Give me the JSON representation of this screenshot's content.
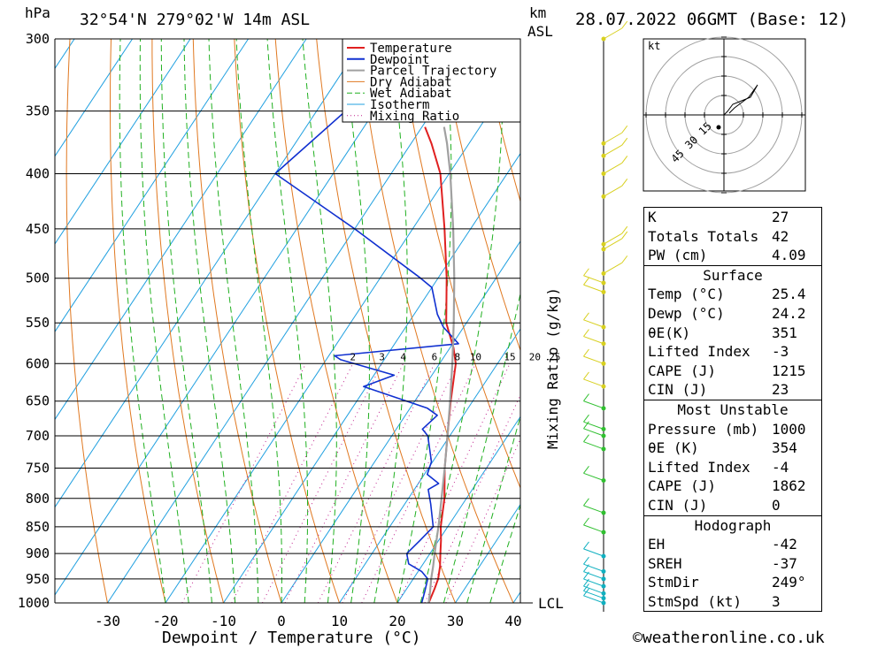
{
  "header": {
    "pressure_unit": "hPa",
    "location": "32°54'N  279°02'W  14m  ASL",
    "height_unit_line1": "km",
    "height_unit_line2": "ASL",
    "datetime": "28.07.2022  06GMT  (Base: 12)"
  },
  "footer": {
    "copyright": "©weatheronline.co.uk"
  },
  "chart_data": {
    "type": "line",
    "title": "32°54'N  279°02'W  14m  ASL",
    "xlabel": "Dewpoint / Temperature (°C)",
    "ylabel": "hPa",
    "right_axis_label": "Mixing Ratio (g/kg)",
    "xlim": [
      -40,
      40
    ],
    "ylim": [
      1000,
      300
    ],
    "x_ticks": [
      "-30",
      "-20",
      "-10",
      "0",
      "10",
      "20",
      "30",
      "40"
    ],
    "pressure_levels": [
      300,
      350,
      400,
      450,
      500,
      550,
      600,
      650,
      700,
      750,
      800,
      850,
      900,
      950,
      1000
    ],
    "pressure_labels": [
      "300",
      "350",
      "400",
      "450",
      "500",
      "550",
      "600",
      "650",
      "700",
      "750",
      "800",
      "850",
      "900",
      "950",
      "1000"
    ],
    "mixing_ratios": [
      1,
      2,
      3,
      4,
      6,
      8,
      10,
      15,
      20,
      25
    ],
    "mixing_ratio_labels": [
      "2",
      "3",
      "4",
      "6",
      "8",
      "10",
      "15",
      "20",
      "25"
    ],
    "lcl_label": "LCL",
    "legend": [
      "Temperature",
      "Dewpoint",
      "Parcel Trajectory",
      "Dry Adiabat",
      "Wet Adiabat",
      "Isotherm",
      "Mixing Ratio"
    ],
    "colors": {
      "temperature": "#e02020",
      "dewpoint": "#1030d0",
      "parcel": "#a0a0a0",
      "dry_adiabat": "#e07820",
      "wet_adiabat": "#20b020",
      "isotherm": "#20a0e0",
      "mixing_ratio": "#c0208c"
    },
    "series": [
      {
        "name": "Temperature",
        "points": [
          [
            1000,
            25.4
          ],
          [
            970,
            24.8
          ],
          [
            950,
            24.3
          ],
          [
            925,
            23.2
          ],
          [
            900,
            21.8
          ],
          [
            875,
            20.4
          ],
          [
            850,
            18.8
          ],
          [
            800,
            16.2
          ],
          [
            750,
            12.8
          ],
          [
            700,
            9.6
          ],
          [
            650,
            6.2
          ],
          [
            600,
            2.8
          ],
          [
            580,
            0.6
          ],
          [
            550,
            -3.5
          ],
          [
            500,
            -8.5
          ],
          [
            450,
            -14.5
          ],
          [
            400,
            -21.5
          ],
          [
            375,
            -26.5
          ],
          [
            362,
            -29.5
          ]
        ]
      },
      {
        "name": "Dewpoint",
        "points": [
          [
            1000,
            24.2
          ],
          [
            975,
            23.4
          ],
          [
            950,
            22.5
          ],
          [
            935,
            20.6
          ],
          [
            920,
            17.5
          ],
          [
            900,
            16.0
          ],
          [
            875,
            16.8
          ],
          [
            850,
            17.5
          ],
          [
            810,
            14.5
          ],
          [
            785,
            12.4
          ],
          [
            775,
            13.5
          ],
          [
            760,
            10.5
          ],
          [
            740,
            9.8
          ],
          [
            700,
            6.2
          ],
          [
            690,
            4.5
          ],
          [
            670,
            5.5
          ],
          [
            660,
            3.0
          ],
          [
            630,
            -10.5
          ],
          [
            615,
            -6.5
          ],
          [
            595,
            -17.5
          ],
          [
            590,
            -19.0
          ],
          [
            575,
            1.0
          ],
          [
            555,
            -3.5
          ],
          [
            540,
            -6.0
          ],
          [
            510,
            -10.0
          ],
          [
            500,
            -13.0
          ],
          [
            450,
            -30.0
          ],
          [
            400,
            -50.0
          ],
          [
            350,
            -45.0
          ],
          [
            320,
            -42.0
          ],
          [
            300,
            -48.0
          ]
        ]
      },
      {
        "name": "Parcel Trajectory",
        "points": [
          [
            1000,
            25.4
          ],
          [
            975,
            24.3
          ],
          [
            950,
            23.1
          ],
          [
            925,
            22.0
          ],
          [
            900,
            20.8
          ],
          [
            850,
            18.4
          ],
          [
            800,
            15.7
          ],
          [
            750,
            12.8
          ],
          [
            700,
            9.6
          ],
          [
            650,
            6.1
          ],
          [
            600,
            2.2
          ],
          [
            550,
            -2.2
          ],
          [
            500,
            -7.2
          ],
          [
            450,
            -13.0
          ],
          [
            400,
            -19.8
          ],
          [
            375,
            -23.8
          ],
          [
            362,
            -26.2
          ]
        ]
      }
    ]
  },
  "hodograph": {
    "unit": "kt",
    "ring_labels": [
      "15",
      "30",
      "45"
    ]
  },
  "indices": {
    "rows": [
      {
        "label": "K",
        "value": "27"
      },
      {
        "label": "Totals Totals",
        "value": "42"
      },
      {
        "label": "PW (cm)",
        "value": "4.09"
      }
    ]
  },
  "surface": {
    "title": "Surface",
    "rows": [
      {
        "label": "Temp (°C)",
        "value": "25.4"
      },
      {
        "label": "Dewp (°C)",
        "value": "24.2"
      },
      {
        "label": "θE(K)",
        "value": "351"
      },
      {
        "label": "Lifted Index",
        "value": "-3"
      },
      {
        "label": "CAPE (J)",
        "value": "1215"
      },
      {
        "label": "CIN (J)",
        "value": "23"
      }
    ]
  },
  "most_unstable": {
    "title": "Most Unstable",
    "rows": [
      {
        "label": "Pressure (mb)",
        "value": "1000"
      },
      {
        "label": "θE (K)",
        "value": "354"
      },
      {
        "label": "Lifted Index",
        "value": "-4"
      },
      {
        "label": "CAPE (J)",
        "value": "1862"
      },
      {
        "label": "CIN (J)",
        "value": "0"
      }
    ]
  },
  "hodograph_table": {
    "title": "Hodograph",
    "rows": [
      {
        "label": "EH",
        "value": "-42"
      },
      {
        "label": "SREH",
        "value": "-37"
      },
      {
        "label": "StmDir",
        "value": "249°"
      },
      {
        "label": "StmSpd (kt)",
        "value": "3"
      }
    ]
  }
}
